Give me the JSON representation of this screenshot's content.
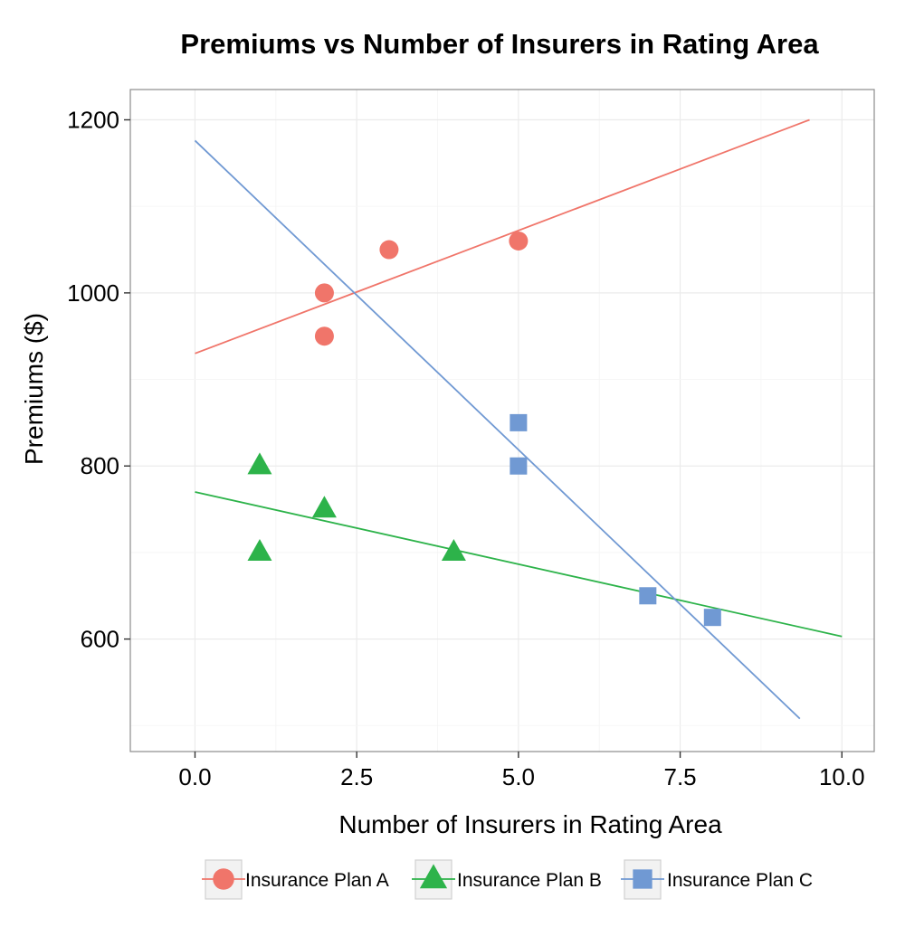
{
  "chart_data": {
    "type": "scatter",
    "title": "Premiums vs Number of Insurers in Rating Area",
    "xlabel": "Number of Insurers in Rating Area",
    "ylabel": "Premiums ($)",
    "xlim": [
      -1,
      10.5
    ],
    "ylim": [
      470,
      1235
    ],
    "x_ticks": [
      0.0,
      2.5,
      5.0,
      7.5,
      10.0
    ],
    "x_tick_labels": [
      "0.0",
      "2.5",
      "5.0",
      "7.5",
      "10.0"
    ],
    "y_ticks": [
      600,
      800,
      1000,
      1200
    ],
    "y_tick_labels": [
      "600",
      "800",
      "1000",
      "1200"
    ],
    "grid": true,
    "legend_position": "bottom",
    "series": [
      {
        "name": "Insurance Plan A",
        "marker": "circle",
        "color": "#f0756a",
        "points": [
          [
            2,
            1000
          ],
          [
            2,
            950
          ],
          [
            3,
            1050
          ],
          [
            5,
            1060
          ]
        ],
        "trend_line": [
          [
            0,
            930
          ],
          [
            9.5,
            1200
          ]
        ]
      },
      {
        "name": "Insurance Plan B",
        "marker": "triangle",
        "color": "#2db34a",
        "points": [
          [
            1,
            800
          ],
          [
            1,
            700
          ],
          [
            2,
            750
          ],
          [
            4,
            700
          ]
        ],
        "trend_line": [
          [
            0,
            770
          ],
          [
            10,
            603
          ]
        ]
      },
      {
        "name": "Insurance Plan C",
        "marker": "square",
        "color": "#7099d3",
        "points": [
          [
            5,
            850
          ],
          [
            5,
            800
          ],
          [
            7,
            650
          ],
          [
            8,
            625
          ]
        ],
        "trend_line": [
          [
            0,
            1176
          ],
          [
            9.35,
            508
          ]
        ]
      }
    ]
  }
}
